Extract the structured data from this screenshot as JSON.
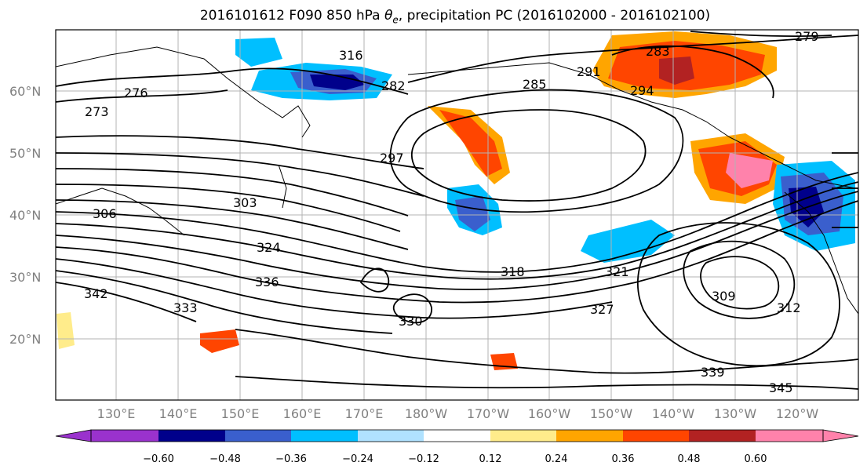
{
  "title_main": "2016101612 F090 850 hPa ",
  "title_theta": "θ",
  "title_sub": "e",
  "title_rest": ", precipitation PC (2016102000 - 2016102100)",
  "lat_labels": [
    "20°N",
    "30°N",
    "40°N",
    "50°N",
    "60°N"
  ],
  "lon_labels": [
    "130°E",
    "140°E",
    "150°E",
    "160°E",
    "170°E",
    "180°W",
    "170°W",
    "160°W",
    "150°W",
    "140°W",
    "130°W",
    "120°W"
  ],
  "contour_labels": [
    "273",
    "276",
    "279",
    "282",
    "283",
    "285",
    "291",
    "294",
    "297",
    "303",
    "306",
    "309",
    "312",
    "316",
    "318",
    "321",
    "324",
    "327",
    "330",
    "333",
    "336",
    "339",
    "342",
    "345"
  ],
  "colorbar": {
    "colors": [
      "#9a32cd",
      "#00008b",
      "#3a5fcd",
      "#00bfff",
      "#b0e2ff",
      "#ffffff",
      "#ffec8b",
      "#ffa500",
      "#ff4500",
      "#b22222",
      "#ff82ab"
    ],
    "under_color": "#9a32cd",
    "over_color": "#ff82ab",
    "tick_labels": [
      "−0.60",
      "−0.48",
      "−0.36",
      "−0.24",
      "−0.12",
      "0.12",
      "0.24",
      "0.36",
      "0.48",
      "0.60"
    ]
  }
}
